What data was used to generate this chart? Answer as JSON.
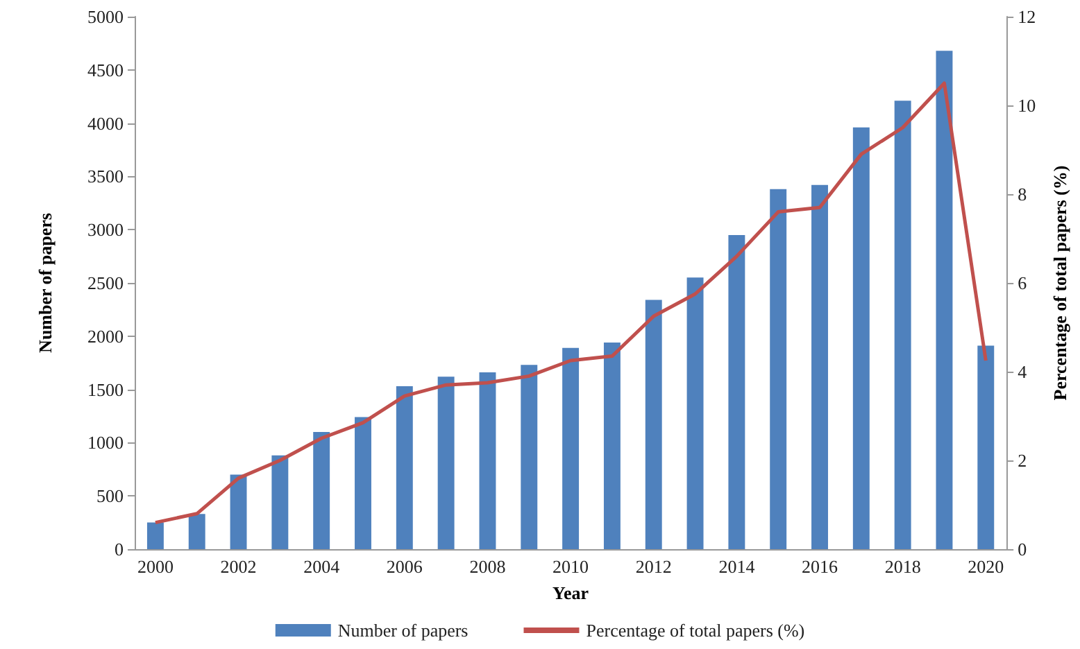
{
  "chart_data": {
    "type": "bar",
    "categories": [
      "2000",
      null,
      "2002",
      null,
      "2004",
      null,
      "2006",
      null,
      "2008",
      null,
      "2010",
      null,
      "2012",
      null,
      "2014",
      null,
      "2016",
      null,
      "2018",
      null,
      "2020"
    ],
    "xlabel": "Year",
    "ylabel": "Number of papers",
    "y2label": "Percentage of total papers (%)",
    "series": [
      {
        "name": "Number of papers",
        "color": "#4f81bd",
        "values": [
          250,
          330,
          700,
          880,
          1100,
          1240,
          1530,
          1620,
          1660,
          1730,
          1890,
          1940,
          2340,
          2550,
          2950,
          3380,
          3420,
          3960,
          4210,
          4680,
          1910
        ]
      },
      {
        "name": "Percentage of total papers (%)",
        "type": "line",
        "axis": "y2",
        "color": "#c0504d",
        "marker": "none",
        "values": [
          0.6,
          0.8,
          1.6,
          2.0,
          2.5,
          2.85,
          3.45,
          3.7,
          3.75,
          3.9,
          4.25,
          4.35,
          5.25,
          5.75,
          6.6,
          7.6,
          7.7,
          8.9,
          9.5,
          10.5,
          4.25
        ]
      }
    ],
    "ylim": [
      0,
      5000
    ],
    "yticks": [
      0,
      500,
      1000,
      1500,
      2000,
      2500,
      3000,
      3500,
      4000,
      4500,
      5000
    ],
    "y2lim": [
      0,
      12
    ],
    "y2ticks": [
      0,
      2,
      4,
      6,
      8,
      10,
      12
    ],
    "grid": false,
    "legend": "bottom"
  }
}
